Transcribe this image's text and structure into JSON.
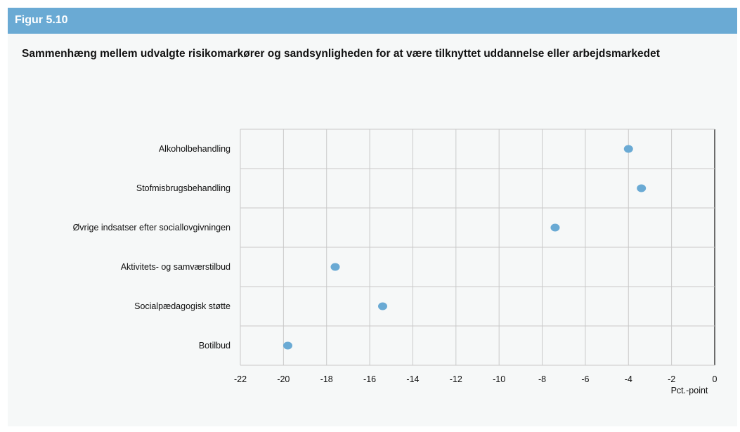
{
  "figure_label": "Figur 5.10",
  "figure_title": "Sammenhæng mellem udvalgte risikomarkører og sandsynligheden for at være tilknyttet uddannelse eller arbejdsmarkedet",
  "colors": {
    "header": "#6aaad4",
    "background": "#f6f8f8",
    "marker": "#6aaad4",
    "grid": "#c9c9c9"
  },
  "chart_data": {
    "type": "scatter",
    "categories": [
      "Alkoholbehandling",
      "Stofmisbrugsbehandling",
      "Øvrige indsatser efter sociallovgivningen",
      "Aktivitets- og samværstilbud",
      "Socialpædagogisk støtte",
      "Botilbud"
    ],
    "values": [
      -4.0,
      -3.4,
      -7.4,
      -17.6,
      -15.4,
      -19.8
    ],
    "xlim": [
      -22,
      0
    ],
    "xticks": [
      -22,
      -20,
      -18,
      -16,
      -14,
      -12,
      -10,
      -8,
      -6,
      -4,
      -2,
      0
    ],
    "xlabel": "Pct.-point",
    "ylabel": "",
    "grid": true
  }
}
